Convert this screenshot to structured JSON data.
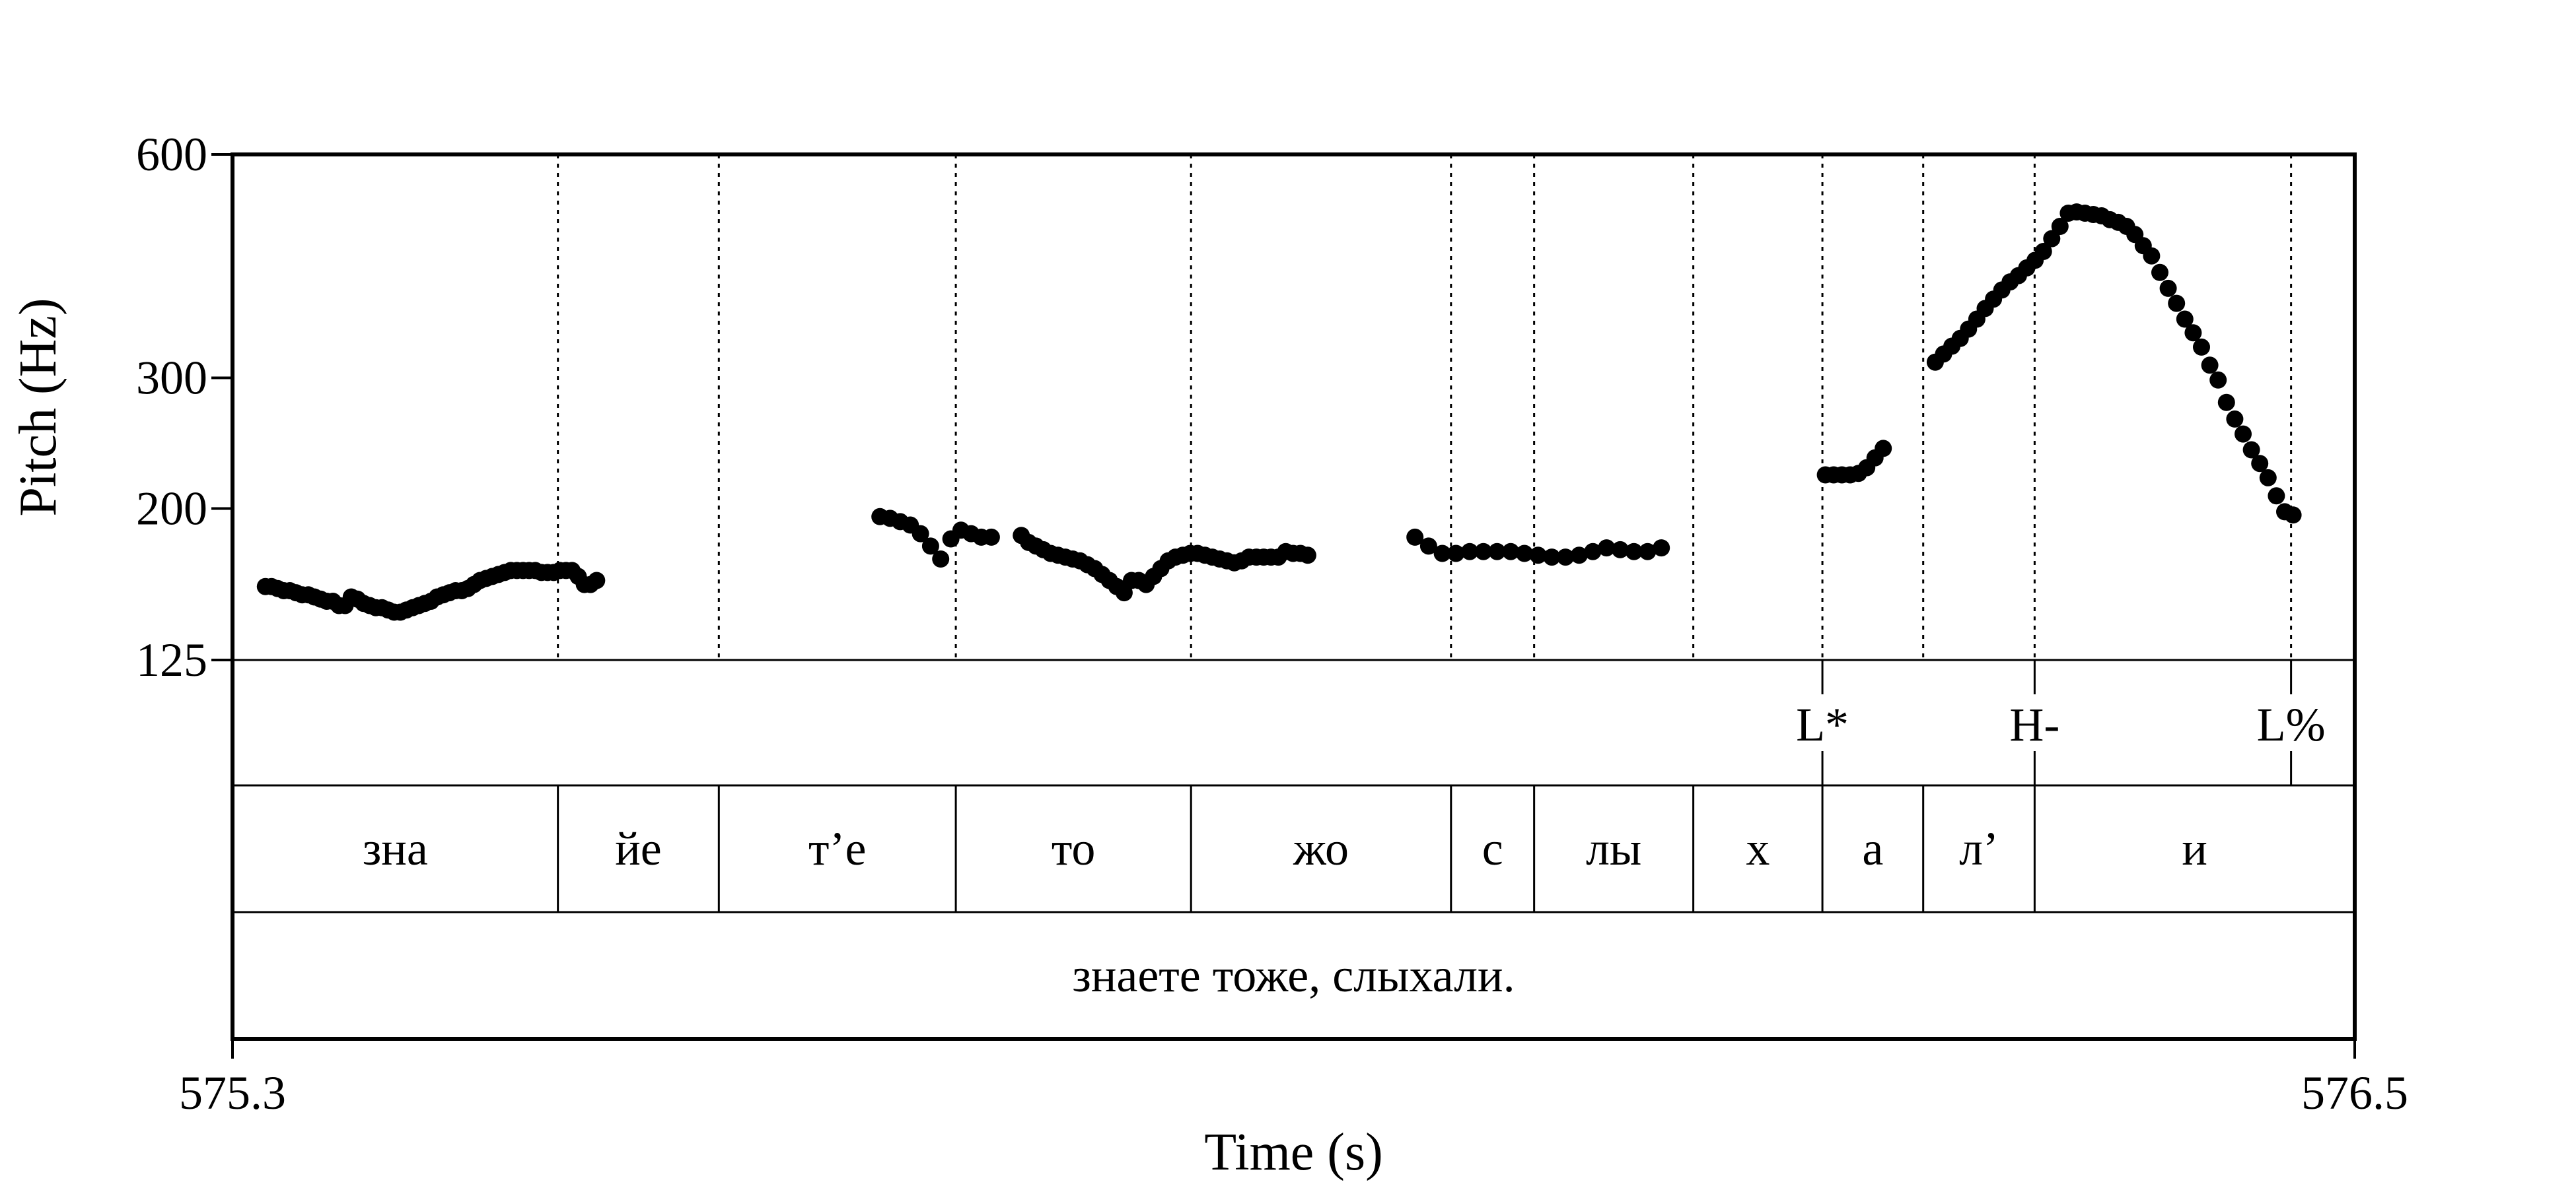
{
  "chart_data": {
    "type": "scatter",
    "xlabel": "Time (s)",
    "ylabel": "Pitch (Hz)",
    "x_ticks": [
      "575.3",
      "576.5"
    ],
    "xlim": [
      575.3,
      576.5
    ],
    "ylim": [
      125,
      600
    ],
    "y_scale": "log",
    "y_ticks": [
      "600",
      "300",
      "200",
      "125"
    ],
    "y_tick_values": [
      600,
      300,
      200,
      125
    ],
    "boundaries": [
      575.484,
      575.575,
      575.709,
      575.842,
      575.989,
      576.036,
      576.126,
      576.199,
      576.256,
      576.319,
      576.464
    ],
    "tones": [
      {
        "label": "L*",
        "time": 576.199
      },
      {
        "label": "H-",
        "time": 576.319
      },
      {
        "label": "L%",
        "time": 576.464
      }
    ],
    "syllables": [
      {
        "label": "зна",
        "start": 575.3,
        "end": 575.484
      },
      {
        "label": "йе",
        "start": 575.484,
        "end": 575.575
      },
      {
        "label": "т’е",
        "start": 575.575,
        "end": 575.709
      },
      {
        "label": "то",
        "start": 575.709,
        "end": 575.842
      },
      {
        "label": "жо",
        "start": 575.842,
        "end": 575.989
      },
      {
        "label": "с",
        "start": 575.989,
        "end": 576.036
      },
      {
        "label": "лы",
        "start": 576.036,
        "end": 576.126
      },
      {
        "label": "х",
        "start": 576.126,
        "end": 576.199
      },
      {
        "label": "а",
        "start": 576.199,
        "end": 576.256
      },
      {
        "label": "л’",
        "start": 576.256,
        "end": 576.319
      },
      {
        "label": "и",
        "start": 576.319,
        "end": 576.5
      }
    ],
    "utterance": "знаете тоже, слыхали.",
    "segments": [
      {
        "name": "",
        "t0": 575.3186,
        "t1": 575.5059,
        "values": [
          157,
          157,
          156,
          155,
          155,
          154,
          153,
          153,
          152,
          151,
          150,
          150,
          148,
          148,
          152,
          151,
          149,
          148,
          147,
          147,
          146,
          145,
          145,
          146,
          147,
          148,
          149,
          150,
          152,
          153,
          154,
          155,
          155,
          156,
          158,
          160,
          161,
          162,
          163,
          164,
          165,
          165,
          165,
          165,
          165,
          164,
          164,
          164,
          165,
          165,
          165,
          162,
          158,
          158,
          160
        ]
      },
      {
        "name": "",
        "t0": 575.6661,
        "t1": 575.7291,
        "values": [
          195,
          194,
          192,
          190,
          185,
          178,
          171,
          182,
          187,
          185,
          183,
          183
        ]
      },
      {
        "name": "",
        "t0": 575.746,
        "t1": 575.908,
        "values": [
          184,
          180,
          178,
          176,
          174,
          173,
          172,
          171,
          170,
          168,
          166,
          163,
          160,
          157,
          154,
          160,
          160,
          158,
          162,
          166,
          170,
          172,
          173,
          174,
          174,
          173,
          172,
          171,
          170,
          169,
          170,
          172,
          172,
          172,
          172,
          172,
          175,
          174,
          174,
          173
        ]
      },
      {
        "name": "",
        "t0": 575.9686,
        "t1": 576.1079,
        "values": [
          183,
          178,
          174,
          174,
          175,
          175,
          175,
          175,
          174,
          173,
          172,
          172,
          173,
          175,
          177,
          176,
          175,
          175,
          177
        ]
      },
      {
        "name": "",
        "t0": 576.2007,
        "t1": 576.2334,
        "values": [
          222,
          222,
          222,
          222,
          223,
          227,
          234,
          241
        ]
      },
      {
        "name": "",
        "t0": 576.2628,
        "t1": 576.4651,
        "values": [
          315,
          323,
          331,
          339,
          349,
          360,
          372,
          383,
          394,
          404,
          412,
          422,
          432,
          444,
          462,
          480,
          500,
          502,
          500,
          498,
          496,
          490,
          486,
          480,
          468,
          452,
          438,
          416,
          396,
          378,
          360,
          345,
          330,
          312,
          298,
          278,
          264,
          252,
          240,
          230,
          220,
          208,
          198,
          196
        ]
      }
    ]
  }
}
